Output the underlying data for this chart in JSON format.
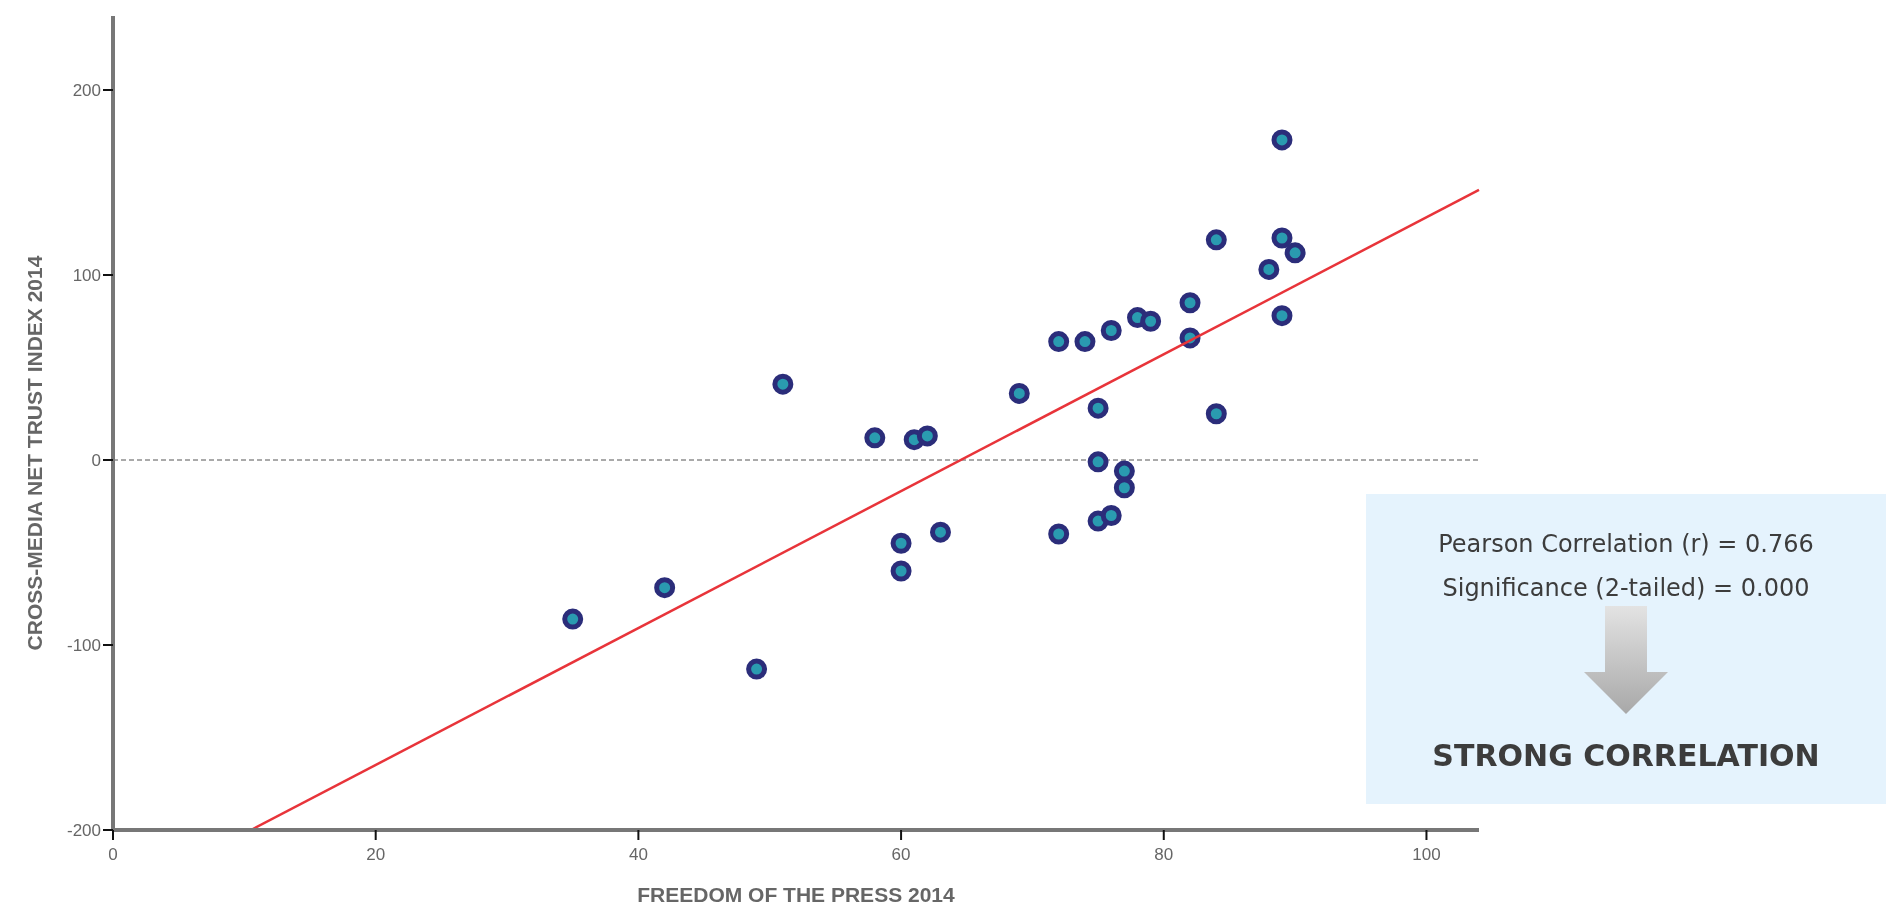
{
  "chart_data": {
    "type": "scatter",
    "xlabel": "FREEDOM OF THE PRESS 2014",
    "ylabel": "CROSS-MEDIA NET TRUST INDEX 2014",
    "xlim": [
      0,
      104
    ],
    "xticks": [
      0,
      20,
      40,
      60,
      80,
      100
    ],
    "ylim": [
      -200,
      240
    ],
    "yticks": [
      -200,
      -100,
      0,
      100,
      200
    ],
    "grid": false,
    "series": [
      {
        "color": "#2b2d7a",
        "marker": "circle",
        "x": [
          35,
          42,
          49,
          51,
          58,
          61,
          62,
          60,
          60,
          63,
          69,
          72,
          72,
          74,
          75,
          75,
          75,
          76,
          76,
          77,
          77,
          78,
          79,
          82,
          82,
          84,
          84,
          88,
          89,
          89,
          89,
          90
        ],
        "values": [
          -86,
          -69,
          -113,
          41,
          12,
          11,
          13,
          -45,
          -60,
          -39,
          36,
          64,
          -40,
          64,
          28,
          -1,
          -33,
          70,
          -30,
          -6,
          -15,
          77,
          75,
          85,
          66,
          119,
          25,
          103,
          120,
          173,
          78,
          112
        ]
      },
      {
        "type": "line",
        "color": "#e8343a",
        "x": [
          10.5,
          104
        ],
        "values": [
          -200,
          146
        ]
      }
    ],
    "ref_lines": [
      {
        "axis": "y",
        "value": 0,
        "color": "#555555",
        "line_style": "dashed"
      }
    ],
    "annotations": [
      "Pearson Correlation (r) = 0.766",
      "Significance (2-tailed) = 0.000",
      "STRONG CORRELATION"
    ]
  }
}
